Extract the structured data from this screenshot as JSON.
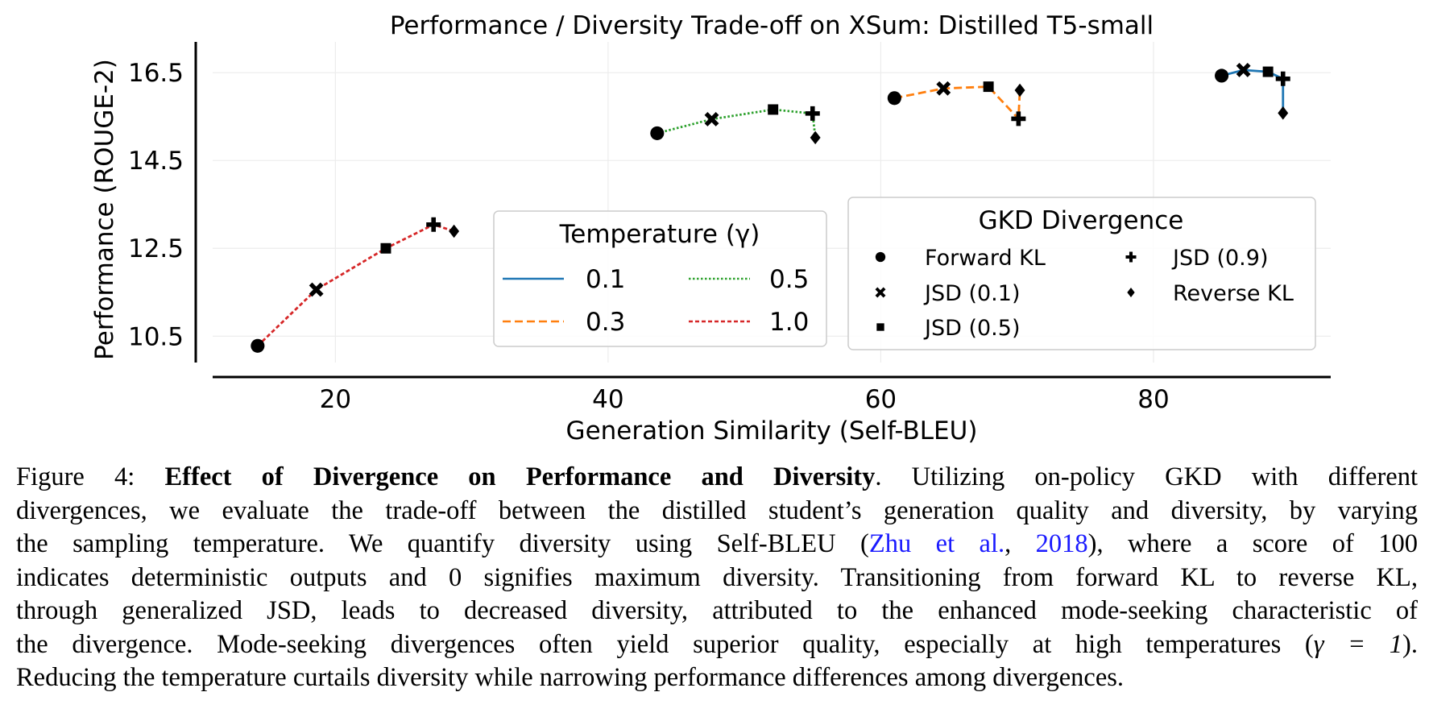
{
  "chart_data": {
    "type": "line",
    "title": "Performance / Diversity Trade-off on XSum: Distilled T5-small",
    "xlabel": "Generation Similarity (Self-BLEU)",
    "ylabel": "Performance (ROUGE-2)",
    "xlim": [
      11,
      93
    ],
    "ylim": [
      9.9,
      17.2
    ],
    "xticks": [
      20,
      40,
      60,
      80
    ],
    "yticks": [
      10.5,
      12.5,
      14.5,
      16.5
    ],
    "xtick_labels": [
      "20",
      "40",
      "60",
      "80"
    ],
    "ytick_labels": [
      "10.5",
      "12.5",
      "14.5",
      "16.5"
    ],
    "grid": true,
    "divergences": [
      "Forward KL",
      "JSD (0.1)",
      "JSD (0.5)",
      "JSD (0.9)",
      "Reverse KL"
    ],
    "markers": [
      "circle",
      "x",
      "square",
      "plus",
      "diamond"
    ],
    "series": [
      {
        "name": "0.1",
        "color": "#1f77b4",
        "dash": "solid",
        "x": [
          85.0,
          86.6,
          88.4,
          89.5,
          89.5
        ],
        "y": [
          16.43,
          16.56,
          16.52,
          16.36,
          15.58
        ]
      },
      {
        "name": "0.3",
        "color": "#ff7f0e",
        "dash": "dashed",
        "x": [
          61.0,
          64.6,
          67.9,
          70.1,
          70.2
        ],
        "y": [
          15.92,
          16.14,
          16.18,
          15.45,
          16.1
        ]
      },
      {
        "name": "0.5",
        "color": "#2ca02c",
        "dash": "dotted",
        "x": [
          43.6,
          47.6,
          52.1,
          55.0,
          55.2
        ],
        "y": [
          15.12,
          15.44,
          15.66,
          15.57,
          15.02
        ]
      },
      {
        "name": "1.0",
        "color": "#d62728",
        "dash": "densedash",
        "x": [
          14.3,
          18.6,
          23.7,
          27.2,
          28.7
        ],
        "y": [
          10.28,
          11.56,
          12.5,
          13.04,
          12.89
        ]
      }
    ],
    "legend_temperature": {
      "title": "Temperature (γ)",
      "placement": "lower-center",
      "entries": [
        "0.1",
        "0.3",
        "0.5",
        "1.0"
      ]
    },
    "legend_divergence": {
      "title": "GKD Divergence",
      "placement": "lower-right",
      "entries": [
        "Forward KL",
        "JSD (0.1)",
        "JSD (0.5)",
        "JSD (0.9)",
        "Reverse KL"
      ]
    }
  },
  "caption": {
    "label": "Figure 4:",
    "bold_title": "Effect of Divergence on Performance and Diversity",
    "text_1": ". Utilizing on-policy GKD with different",
    "line_2": "divergences, we evaluate the trade-off between the distilled student’s generation quality and diversity, by varying",
    "line_3_a": "the sampling temperature. We quantify diversity using Self-BLEU (",
    "cite_authors": "Zhu et al.",
    "cite_sep": ", ",
    "cite_year": "2018",
    "line_3_b": "), where a score of 100",
    "line_4": "indicates deterministic outputs and 0 signifies maximum diversity. Transitioning from forward KL to reverse KL,",
    "line_5": "through generalized JSD, leads to decreased diversity, attributed to the enhanced mode-seeking characteristic of",
    "line_6_a": "the divergence. Mode-seeking divergences often yield superior quality, especially at high temperatures (",
    "math": "γ = 1",
    "line_6_b": ").",
    "line_7": "Reducing the temperature curtails diversity while narrowing performance differences among divergences."
  }
}
